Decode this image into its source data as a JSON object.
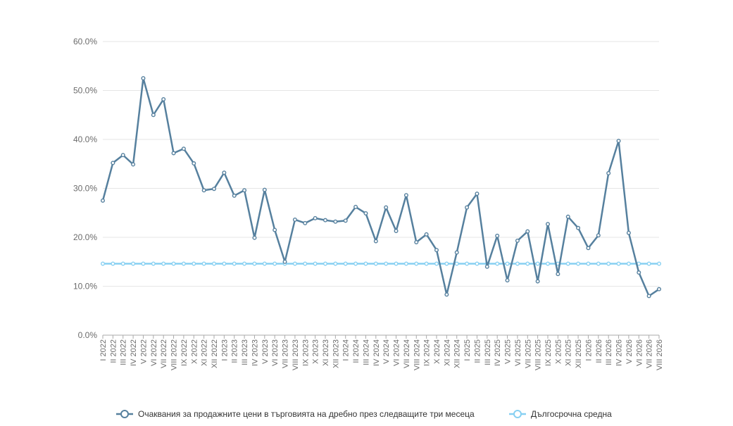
{
  "chart_data": {
    "type": "line",
    "title": "",
    "xlabel": "",
    "ylabel": "",
    "ylim": [
      0,
      60
    ],
    "y_ticks": [
      "0.0%",
      "10.0%",
      "20.0%",
      "30.0%",
      "40.0%",
      "50.0%",
      "60.0%"
    ],
    "grid": "horizontal",
    "legend_position": "bottom",
    "categories": [
      "I 2022",
      "II 2022",
      "III 2022",
      "IV 2022",
      "V 2022",
      "VI 2022",
      "VII 2022",
      "VIII 2022",
      "IX 2022",
      "X 2022",
      "XI 2022",
      "XII 2022",
      "I 2023",
      "II 2023",
      "III 2023",
      "IV 2023",
      "V 2023",
      "VI 2023",
      "VII 2023",
      "VIII 2023",
      "IX 2023",
      "X 2023",
      "XI 2023",
      "XII 2023",
      "I 2024",
      "II 2024",
      "III 2024",
      "IV 2024",
      "V 2024",
      "VI 2024",
      "VII 2024",
      "VIII 2024",
      "IX 2024",
      "X 2024",
      "XI 2024",
      "XII 2024",
      "I 2025",
      "II 2025",
      "III 2025",
      "IV 2025",
      "V 2025",
      "VI 2025",
      "VII 2025",
      "VIII 2025",
      "IX 2025",
      "X 2025",
      "XI 2025",
      "XII 2025",
      "I 2026",
      "II 2026",
      "III 2026",
      "IV 2026",
      "V 2026",
      "VI 2026",
      "VII 2026",
      "VIII 2026"
    ],
    "series": [
      {
        "name": "Очаквания за продажните цени в търговията на дребно през следващите три месеца",
        "color": "#56809e",
        "values": [
          27.5,
          35.2,
          36.8,
          34.9,
          52.5,
          45.0,
          48.2,
          37.2,
          38.1,
          35.1,
          29.6,
          29.9,
          33.2,
          28.5,
          29.6,
          19.9,
          29.7,
          21.5,
          15.0,
          23.6,
          22.9,
          23.9,
          23.5,
          23.2,
          23.4,
          26.2,
          24.9,
          19.2,
          26.1,
          21.3,
          28.6,
          19.0,
          20.6,
          17.4,
          8.3,
          16.9,
          26.1,
          28.9,
          14.0,
          20.3,
          11.2,
          19.3,
          21.2,
          11.0,
          22.7,
          12.5,
          24.2,
          21.9,
          17.8,
          20.4,
          33.1,
          39.7,
          20.9,
          12.8,
          8.0,
          9.4
        ]
      },
      {
        "name": "Дългосрочна средна",
        "color": "#87d0f2",
        "values": [
          14.6,
          14.6,
          14.6,
          14.6,
          14.6,
          14.6,
          14.6,
          14.6,
          14.6,
          14.6,
          14.6,
          14.6,
          14.6,
          14.6,
          14.6,
          14.6,
          14.6,
          14.6,
          14.6,
          14.6,
          14.6,
          14.6,
          14.6,
          14.6,
          14.6,
          14.6,
          14.6,
          14.6,
          14.6,
          14.6,
          14.6,
          14.6,
          14.6,
          14.6,
          14.6,
          14.6,
          14.6,
          14.6,
          14.6,
          14.6,
          14.6,
          14.6,
          14.6,
          14.6,
          14.6,
          14.6,
          14.6,
          14.6,
          14.6,
          14.6,
          14.6,
          14.6,
          14.6,
          14.6,
          14.6,
          14.6
        ]
      }
    ]
  },
  "legend": {
    "items": [
      {
        "label": "Очаквания за продажните цени в търговията на дребно през следващите три месеца",
        "color": "#56809e"
      },
      {
        "label": "Дългосрочна средна",
        "color": "#87d0f2"
      }
    ]
  }
}
